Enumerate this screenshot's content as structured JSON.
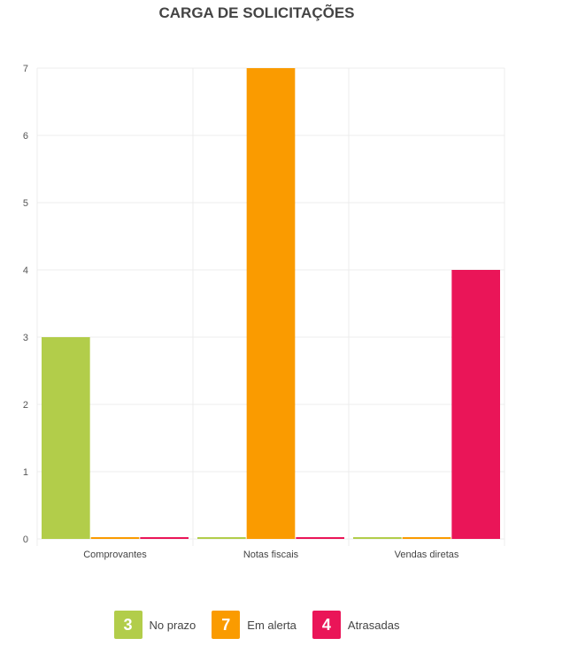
{
  "chart_data": {
    "type": "bar",
    "title": "CARGA DE SOLICITAÇÕES",
    "xlabel": "",
    "ylabel": "",
    "categories": [
      "Comprovantes",
      "Notas fiscais",
      "Vendas diretas"
    ],
    "series": [
      {
        "name": "No prazo",
        "values": [
          3,
          0,
          0
        ],
        "color": "#b2cd4a"
      },
      {
        "name": "Em alerta",
        "values": [
          0,
          7,
          0
        ],
        "color": "#fa9b00"
      },
      {
        "name": "Atrasadas",
        "values": [
          0,
          0,
          4
        ],
        "color": "#ea1558"
      }
    ],
    "ylim": [
      0,
      7
    ],
    "yticks": [
      0,
      1,
      2,
      3,
      4,
      5,
      6,
      7
    ],
    "grid": true,
    "legend_position": "bottom-center"
  },
  "legend": [
    {
      "count": "3",
      "label": "No prazo",
      "color": "#b2cd4a"
    },
    {
      "count": "7",
      "label": "Em alerta",
      "color": "#fa9b00"
    },
    {
      "count": "4",
      "label": "Atrasadas",
      "color": "#ea1558"
    }
  ]
}
